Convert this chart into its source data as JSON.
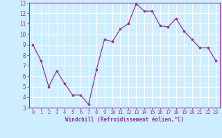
{
  "x": [
    0,
    1,
    2,
    3,
    4,
    5,
    6,
    7,
    8,
    9,
    10,
    11,
    12,
    13,
    14,
    15,
    16,
    17,
    18,
    19,
    20,
    21,
    22,
    23
  ],
  "y": [
    9.0,
    7.5,
    5.0,
    6.5,
    5.3,
    4.2,
    4.2,
    3.3,
    6.6,
    9.5,
    9.3,
    10.5,
    11.0,
    12.9,
    12.2,
    12.2,
    10.8,
    10.7,
    11.5,
    10.3,
    9.5,
    8.7,
    8.7,
    7.5
  ],
  "line_color": "#993399",
  "marker_color": "#993399",
  "bg_color": "#cceeff",
  "grid_color": "#ffffff",
  "xlabel": "Windchill (Refroidissement éolien,°C)",
  "xlabel_color": "#993399",
  "tick_color": "#993399",
  "ylim": [
    3,
    13
  ],
  "xlim": [
    -0.5,
    23.5
  ],
  "yticks": [
    3,
    4,
    5,
    6,
    7,
    8,
    9,
    10,
    11,
    12,
    13
  ],
  "xticks": [
    0,
    1,
    2,
    3,
    4,
    5,
    6,
    7,
    8,
    9,
    10,
    11,
    12,
    13,
    14,
    15,
    16,
    17,
    18,
    19,
    20,
    21,
    22,
    23
  ],
  "xtick_labels": [
    "0",
    "1",
    "2",
    "3",
    "4",
    "5",
    "6",
    "7",
    "8",
    "9",
    "10",
    "11",
    "12",
    "13",
    "14",
    "15",
    "16",
    "17",
    "18",
    "19",
    "20",
    "21",
    "22",
    "23"
  ],
  "ytick_labels": [
    "3",
    "4",
    "5",
    "6",
    "7",
    "8",
    "9",
    "10",
    "11",
    "12",
    "13"
  ]
}
